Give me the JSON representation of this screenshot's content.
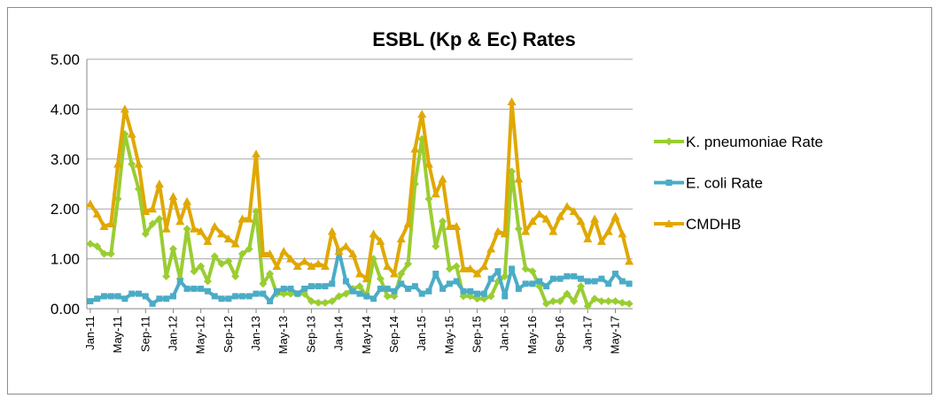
{
  "chart_data": {
    "type": "line",
    "title": "ESBL (Kp & Ec) Rates",
    "categories": [
      "Jan-11",
      null,
      null,
      null,
      "May-11",
      null,
      null,
      null,
      "Sep-11",
      null,
      null,
      null,
      "Jan-12",
      null,
      null,
      null,
      "May-12",
      null,
      null,
      null,
      "Sep-12",
      null,
      null,
      null,
      "Jan-13",
      null,
      null,
      null,
      "May-13",
      null,
      null,
      null,
      "Sep-13",
      null,
      null,
      null,
      "Jan-14",
      null,
      null,
      null,
      "May-14",
      null,
      null,
      null,
      "Sep-14",
      null,
      null,
      null,
      "Jan-15",
      null,
      null,
      null,
      "May-15",
      null,
      null,
      null,
      "Sep-15",
      null,
      null,
      null,
      "Jan-16",
      null,
      null,
      null,
      "May-16",
      null,
      null,
      null,
      "Sep-16",
      null,
      null,
      null,
      "Jan-17",
      null,
      null,
      null,
      "May-17",
      null,
      null
    ],
    "series": [
      {
        "name": "K. pneumoniae Rate",
        "color": "#9acd32",
        "marker": "diamond",
        "values": [
          1.3,
          1.25,
          1.1,
          1.1,
          2.2,
          3.5,
          2.9,
          2.4,
          1.5,
          1.7,
          1.8,
          0.65,
          1.2,
          0.6,
          1.6,
          0.75,
          0.85,
          0.55,
          1.05,
          0.9,
          0.95,
          0.65,
          1.1,
          1.2,
          1.95,
          0.5,
          0.7,
          0.3,
          0.3,
          0.3,
          0.3,
          0.3,
          0.15,
          0.12,
          0.12,
          0.15,
          0.25,
          0.3,
          0.4,
          0.45,
          0.25,
          1.0,
          0.6,
          0.25,
          0.25,
          0.7,
          0.9,
          2.5,
          3.4,
          2.2,
          1.25,
          1.75,
          0.8,
          0.85,
          0.25,
          0.25,
          0.2,
          0.2,
          0.25,
          0.55,
          0.65,
          2.75,
          1.6,
          0.8,
          0.75,
          0.45,
          0.1,
          0.15,
          0.15,
          0.3,
          0.15,
          0.45,
          0.05,
          0.2,
          0.15,
          0.15,
          0.15,
          0.12,
          0.1
        ]
      },
      {
        "name": "E. coli Rate",
        "color": "#4bacc6",
        "marker": "square",
        "values": [
          0.15,
          0.2,
          0.25,
          0.25,
          0.25,
          0.2,
          0.3,
          0.3,
          0.25,
          0.1,
          0.2,
          0.2,
          0.25,
          0.55,
          0.4,
          0.4,
          0.4,
          0.35,
          0.25,
          0.2,
          0.2,
          0.25,
          0.25,
          0.25,
          0.3,
          0.3,
          0.15,
          0.35,
          0.4,
          0.4,
          0.3,
          0.4,
          0.45,
          0.45,
          0.45,
          0.5,
          1.15,
          0.55,
          0.35,
          0.3,
          0.25,
          0.2,
          0.4,
          0.4,
          0.35,
          0.5,
          0.4,
          0.45,
          0.3,
          0.35,
          0.7,
          0.4,
          0.5,
          0.55,
          0.35,
          0.35,
          0.3,
          0.3,
          0.6,
          0.75,
          0.25,
          0.8,
          0.4,
          0.5,
          0.5,
          0.55,
          0.45,
          0.6,
          0.6,
          0.65,
          0.65,
          0.6,
          0.55,
          0.55,
          0.6,
          0.5,
          0.7,
          0.55,
          0.5
        ]
      },
      {
        "name": "CMDHB",
        "color": "#e0a800",
        "marker": "triangle",
        "values": [
          2.1,
          1.9,
          1.65,
          1.7,
          2.9,
          4.0,
          3.5,
          2.9,
          1.95,
          2.0,
          2.5,
          1.6,
          2.25,
          1.75,
          2.15,
          1.6,
          1.55,
          1.35,
          1.65,
          1.5,
          1.4,
          1.3,
          1.8,
          1.8,
          3.1,
          1.1,
          1.1,
          0.85,
          1.15,
          1.0,
          0.85,
          0.95,
          0.85,
          0.9,
          0.85,
          1.55,
          1.15,
          1.25,
          1.1,
          0.7,
          0.6,
          1.5,
          1.35,
          0.85,
          0.7,
          1.4,
          1.7,
          3.2,
          3.9,
          2.9,
          2.3,
          2.6,
          1.65,
          1.65,
          0.8,
          0.8,
          0.7,
          0.85,
          1.2,
          1.55,
          1.5,
          4.15,
          2.6,
          1.55,
          1.75,
          1.9,
          1.8,
          1.55,
          1.85,
          2.05,
          1.95,
          1.75,
          1.4,
          1.8,
          1.35,
          1.55,
          1.85,
          1.5,
          0.95
        ]
      }
    ],
    "ylim": [
      0,
      5
    ],
    "yticks": [
      {
        "value": 0,
        "label": "0.00"
      },
      {
        "value": 1,
        "label": "1.00"
      },
      {
        "value": 2,
        "label": "2.00"
      },
      {
        "value": 3,
        "label": "3.00"
      },
      {
        "value": 4,
        "label": "4.00"
      },
      {
        "value": 5,
        "label": "5.00"
      }
    ],
    "grid": true,
    "legend": "right"
  }
}
